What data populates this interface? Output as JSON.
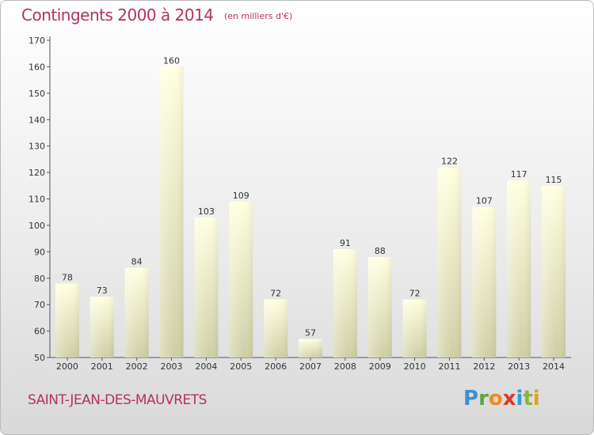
{
  "header": {
    "title": "Contingents 2000 à 2014",
    "subtitle": "(en milliers d'€)"
  },
  "footer": {
    "commune": "SAINT-JEAN-DES-MAUVRETS",
    "logo": {
      "letters": [
        "P",
        "r",
        "o",
        "x",
        "i",
        "t",
        "i"
      ],
      "colors": [
        "#3f8fd0",
        "#5aa83c",
        "#f08a1c",
        "#d93a2c",
        "#2f9ad8",
        "#87b63a",
        "#e2a21c"
      ]
    }
  },
  "chart_data": {
    "type": "bar",
    "title": "Contingents 2000 à 2014",
    "subtitle": "(en milliers d'€)",
    "categories": [
      "2000",
      "2001",
      "2002",
      "2003",
      "2004",
      "2005",
      "2006",
      "2007",
      "2008",
      "2009",
      "2010",
      "2011",
      "2012",
      "2013",
      "2014"
    ],
    "values": [
      78,
      73,
      84,
      160,
      103,
      109,
      72,
      57,
      91,
      88,
      72,
      122,
      107,
      117,
      115
    ],
    "ylim": [
      50,
      170
    ],
    "yticks": [
      50,
      60,
      70,
      80,
      90,
      100,
      110,
      120,
      130,
      140,
      150,
      160,
      170
    ],
    "grid": false,
    "bar_color": "#f0f0c4",
    "title_color": "#b5325a"
  }
}
